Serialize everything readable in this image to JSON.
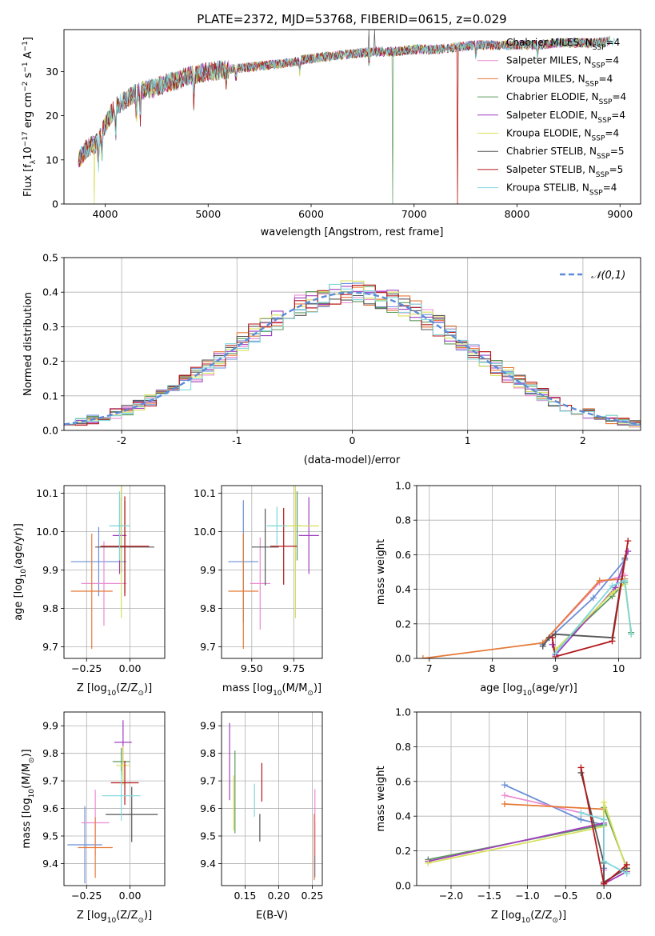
{
  "figure": {
    "title": "PLATE=2372, MJD=53768, FIBERID=0615, z=0.029"
  },
  "models": [
    {
      "name": "Chabrier MILES",
      "nssp": "4",
      "color": "#6a8fd6"
    },
    {
      "name": "Salpeter MILES",
      "nssp": "4",
      "color": "#ea8bd0"
    },
    {
      "name": "Kroupa MILES",
      "nssp": "4",
      "color": "#e57a38"
    },
    {
      "name": "Chabrier ELODIE",
      "nssp": "4",
      "color": "#5e9a5c"
    },
    {
      "name": "Salpeter ELODIE",
      "nssp": "4",
      "color": "#9f3fbf"
    },
    {
      "name": "Kroupa ELODIE",
      "nssp": "4",
      "color": "#d7e05a"
    },
    {
      "name": "Chabrier STELIB",
      "nssp": "5",
      "color": "#555555"
    },
    {
      "name": "Salpeter STELIB",
      "nssp": "5",
      "color": "#b3181b"
    },
    {
      "name": "Kroupa STELIB",
      "nssp": "4",
      "color": "#7fd8dc"
    }
  ],
  "chart_data": [
    {
      "id": "spectrum",
      "type": "line",
      "title": "PLATE=2372, MJD=53768, FIBERID=0615, z=0.029",
      "xlabel": "wavelength [Angstrom, rest frame]",
      "ylabel_parts": [
        "Flux [f",
        "λ",
        "10",
        "−17",
        " erg cm",
        "−2",
        " s",
        "−1",
        " A",
        "−1",
        "]"
      ],
      "xlim": [
        3600,
        9200
      ],
      "ylim": [
        0,
        39.5
      ],
      "xticks": [
        4000,
        5000,
        6000,
        7000,
        8000,
        9000
      ],
      "yticks": [
        0,
        10,
        20,
        30
      ],
      "continuum": {
        "x": [
          3740,
          3800,
          3850,
          3900,
          3950,
          4000,
          4050,
          4100,
          4200,
          4300,
          4400,
          4500,
          4600,
          4700,
          4800,
          4900,
          5000,
          5200,
          5400,
          5600,
          5800,
          6000,
          6200,
          6400,
          6600,
          6800,
          7000,
          7200,
          7400,
          7600,
          7800,
          8000,
          8200,
          8400,
          8600,
          8800,
          8900
        ],
        "y": [
          10,
          12,
          13,
          13.5,
          15,
          18,
          20,
          22,
          23.5,
          25,
          26,
          26.5,
          27.5,
          28,
          29,
          29.5,
          30,
          30.5,
          31,
          31.5,
          32,
          33,
          33.5,
          34,
          34.5,
          34.5,
          35,
          35,
          35.5,
          36,
          36,
          36,
          36,
          36.5,
          36.5,
          36.5,
          37
        ]
      },
      "features": [
        {
          "series": 5,
          "x": 3895,
          "y": 0
        },
        {
          "series": 3,
          "x": 6790,
          "y": 0
        },
        {
          "series": 2,
          "x": 7420,
          "y": 0
        },
        {
          "series": 7,
          "x": 7420,
          "y": 0
        },
        {
          "series": 6,
          "x": 6560,
          "y": 39.5
        },
        {
          "series": 6,
          "x": 6620,
          "y": 39.5
        }
      ],
      "legend": "upper right"
    },
    {
      "id": "residuals",
      "type": "histogram",
      "xlabel": "(data-model)/error",
      "ylabel": "Normed distribution",
      "xlim": [
        -2.5,
        2.5
      ],
      "ylim": [
        0,
        0.5
      ],
      "xticks": [
        -2,
        -1,
        0,
        1,
        2
      ],
      "yticks": [
        0.0,
        0.1,
        0.2,
        0.3,
        0.4,
        0.5
      ],
      "bin_width": 0.1,
      "normal_curve": {
        "label": "𝒩(0,1)",
        "mu": 0,
        "sigma": 1,
        "color": "#5b8bd9"
      },
      "legend": "upper right"
    },
    {
      "id": "age-vs-Z",
      "type": "errorbar",
      "xlabel_parts": [
        "Z [log",
        "10",
        "(Z/Z",
        "⊙",
        ")]"
      ],
      "ylabel_parts": [
        "age  [log",
        "10",
        "(age/yr)]"
      ],
      "xlim": [
        -0.38,
        0.2
      ],
      "ylim": [
        9.67,
        10.12
      ],
      "xticks": [
        -0.25,
        0.0
      ],
      "xtick_labels": [
        "−0.25",
        "0.00"
      ],
      "yticks": [
        9.7,
        9.8,
        9.9,
        10.0,
        10.1
      ],
      "points": [
        {
          "series": 0,
          "x": -0.18,
          "xerr": 0.16,
          "y": 9.922,
          "yerr": 0.09
        },
        {
          "series": 1,
          "x": -0.15,
          "xerr": 0.13,
          "y": 9.865,
          "yerr": 0.11
        },
        {
          "series": 2,
          "x": -0.22,
          "xerr": 0.12,
          "y": 9.845,
          "yerr": 0.15
        },
        {
          "series": 3,
          "x": -0.05,
          "xerr": 0.02,
          "y": 10.015,
          "yerr": 0.12
        },
        {
          "series": 4,
          "x": -0.06,
          "xerr": 0.04,
          "y": 9.99,
          "yerr": 0.1
        },
        {
          "series": 5,
          "x": -0.05,
          "xerr": 0.05,
          "y": 10.015,
          "yerr": 0.24
        },
        {
          "series": 6,
          "x": -0.03,
          "xerr": 0.17,
          "y": 9.96,
          "yerr": 0.12
        },
        {
          "series": 7,
          "x": -0.03,
          "xerr": 0.14,
          "y": 9.962,
          "yerr": 0.13
        },
        {
          "series": 8,
          "x": -0.06,
          "xerr": 0.06,
          "y": 10.015,
          "yerr": 0.09
        }
      ]
    },
    {
      "id": "age-vs-mass",
      "type": "errorbar",
      "xlabel_parts": [
        "mass [log",
        "10",
        "(M/M",
        "⊙",
        ")]"
      ],
      "xlim": [
        9.32,
        9.92
      ],
      "ylim": [
        9.67,
        10.12
      ],
      "xticks": [
        9.5,
        9.75
      ],
      "xtick_labels": [
        "9.50",
        "9.75"
      ],
      "yticks": [
        9.7,
        9.8,
        9.9,
        10.0,
        10.1
      ],
      "points": [
        {
          "series": 0,
          "x": 9.45,
          "xerr": 0.09,
          "y": 9.922,
          "yerr": 0.16
        },
        {
          "series": 1,
          "x": 9.55,
          "xerr": 0.06,
          "y": 9.865,
          "yerr": 0.12
        },
        {
          "series": 2,
          "x": 9.45,
          "xerr": 0.09,
          "y": 9.845,
          "yerr": 0.15
        },
        {
          "series": 3,
          "x": 9.77,
          "xerr": 0.02,
          "y": 10.015,
          "yerr": 0.09
        },
        {
          "series": 4,
          "x": 9.84,
          "xerr": 0.06,
          "y": 9.99,
          "yerr": 0.1
        },
        {
          "series": 5,
          "x": 9.76,
          "xerr": 0.14,
          "y": 10.015,
          "yerr": 0.24
        },
        {
          "series": 6,
          "x": 9.58,
          "xerr": 0.08,
          "y": 9.96,
          "yerr": 0.1
        },
        {
          "series": 7,
          "x": 9.69,
          "xerr": 0.08,
          "y": 9.962,
          "yerr": 0.1
        },
        {
          "series": 8,
          "x": 9.65,
          "xerr": 0.06,
          "y": 10.015,
          "yerr": 0.05
        }
      ]
    },
    {
      "id": "massweight-vs-age",
      "type": "line",
      "xlabel_parts": [
        "age  [log",
        "10",
        "(age/yr)]"
      ],
      "ylabel": "mass weight",
      "xlim": [
        6.8,
        10.35
      ],
      "ylim": [
        0,
        1.0
      ],
      "xticks": [
        7,
        8,
        9,
        10
      ],
      "yticks": [
        0.0,
        0.2,
        0.4,
        0.6,
        0.8,
        1.0
      ],
      "series": [
        {
          "series": 0,
          "x": [
            8.8,
            9.6,
            10.1
          ],
          "y": [
            0.08,
            0.35,
            0.57
          ]
        },
        {
          "series": 1,
          "x": [
            8.8,
            9.7,
            10.1
          ],
          "y": [
            0.09,
            0.44,
            0.48
          ]
        },
        {
          "series": 2,
          "x": [
            6.9,
            8.8,
            9.7,
            10.1
          ],
          "y": [
            0.0,
            0.09,
            0.45,
            0.46
          ]
        },
        {
          "series": 3,
          "x": [
            9.0,
            9.9,
            10.1,
            10.2
          ],
          "y": [
            0.05,
            0.36,
            0.44,
            0.15
          ]
        },
        {
          "series": 4,
          "x": [
            8.95,
            9.0,
            9.95,
            10.15
          ],
          "y": [
            0.08,
            0.02,
            0.41,
            0.62
          ]
        },
        {
          "series": 5,
          "x": [
            9.0,
            9.9,
            10.1,
            10.2
          ],
          "y": [
            0.05,
            0.38,
            0.43,
            0.14
          ]
        },
        {
          "series": 6,
          "x": [
            8.8,
            8.9,
            9.0,
            9.9,
            10.1
          ],
          "y": [
            0.07,
            0.12,
            0.14,
            0.12,
            0.58
          ]
        },
        {
          "series": 7,
          "x": [
            8.95,
            9.0,
            9.9,
            10.15
          ],
          "y": [
            0.12,
            0.01,
            0.1,
            0.68
          ]
        },
        {
          "series": 8,
          "x": [
            9.0,
            9.9,
            10.1,
            10.2
          ],
          "y": [
            0.03,
            0.42,
            0.45,
            0.14
          ]
        }
      ]
    },
    {
      "id": "mass-vs-Z",
      "type": "errorbar",
      "xlabel_parts": [
        "Z [log",
        "10",
        "(Z/Z",
        "⊙",
        ")]"
      ],
      "ylabel_parts": [
        "mass [log",
        "10",
        "(M/M",
        "⊙",
        ")]"
      ],
      "xlim": [
        -0.38,
        0.2
      ],
      "ylim": [
        9.32,
        9.95
      ],
      "xticks": [
        -0.25,
        0.0
      ],
      "xtick_labels": [
        "−0.25",
        "0.00"
      ],
      "yticks": [
        9.4,
        9.5,
        9.6,
        9.7,
        9.8,
        9.9
      ],
      "points": [
        {
          "series": 0,
          "x": -0.26,
          "xerr": 0.1,
          "y": 9.468,
          "yerr": 0.14
        },
        {
          "series": 1,
          "x": -0.2,
          "xerr": 0.08,
          "y": 9.548,
          "yerr": 0.12
        },
        {
          "series": 2,
          "x": -0.2,
          "xerr": 0.1,
          "y": 9.458,
          "yerr": 0.11
        },
        {
          "series": 3,
          "x": -0.05,
          "xerr": 0.05,
          "y": 9.77,
          "yerr": 0.05
        },
        {
          "series": 4,
          "x": -0.04,
          "xerr": 0.05,
          "y": 9.84,
          "yerr": 0.08
        },
        {
          "series": 5,
          "x": -0.04,
          "xerr": 0.04,
          "y": 9.756,
          "yerr": 0.07
        },
        {
          "series": 6,
          "x": 0.01,
          "xerr": 0.15,
          "y": 9.578,
          "yerr": 0.1
        },
        {
          "series": 7,
          "x": -0.03,
          "xerr": 0.08,
          "y": 9.693,
          "yerr": 0.08
        },
        {
          "series": 8,
          "x": -0.05,
          "xerr": 0.11,
          "y": 9.646,
          "yerr": 0.09
        }
      ]
    },
    {
      "id": "mass-vs-EBV",
      "type": "errorbar",
      "xlabel": "E(B-V)",
      "xlim": [
        0.115,
        0.265
      ],
      "ylim": [
        9.32,
        9.95
      ],
      "xticks": [
        0.15,
        0.2,
        0.25
      ],
      "xtick_labels": [
        "0.15",
        "0.20",
        "0.25"
      ],
      "yticks": [
        9.4,
        9.5,
        9.6,
        9.7,
        9.8,
        9.9
      ],
      "points": [
        {
          "series": 0,
          "x": 0.254,
          "xerr": 0,
          "y": 9.45,
          "yerr": 0.1
        },
        {
          "series": 1,
          "x": 0.254,
          "xerr": 0,
          "y": 9.55,
          "yerr": 0.12
        },
        {
          "series": 2,
          "x": 0.253,
          "xerr": 0,
          "y": 9.46,
          "yerr": 0.12
        },
        {
          "series": 3,
          "x": 0.135,
          "xerr": 0,
          "y": 9.66,
          "yerr": 0.15
        },
        {
          "series": 4,
          "x": 0.127,
          "xerr": 0,
          "y": 9.77,
          "yerr": 0.14
        },
        {
          "series": 5,
          "x": 0.133,
          "xerr": 0,
          "y": 9.62,
          "yerr": 0.1
        },
        {
          "series": 6,
          "x": 0.172,
          "xerr": 0,
          "y": 9.53,
          "yerr": 0.05
        },
        {
          "series": 7,
          "x": 0.175,
          "xerr": 0,
          "y": 9.695,
          "yerr": 0.07
        },
        {
          "series": 8,
          "x": 0.164,
          "xerr": 0,
          "y": 9.63,
          "yerr": 0.06
        }
      ]
    },
    {
      "id": "massweight-vs-Z",
      "type": "line",
      "xlabel_parts": [
        "Z [log",
        "10",
        "(Z/Z",
        "⊙",
        ")]"
      ],
      "ylabel": "mass weight",
      "xlim": [
        -2.45,
        0.48
      ],
      "ylim": [
        0,
        1.0
      ],
      "xticks": [
        -2.0,
        -1.5,
        -1.0,
        -0.5,
        0.0
      ],
      "xtick_labels": [
        "−2.0",
        "−1.5",
        "−1.0",
        "−0.5",
        "0.0"
      ],
      "yticks": [
        0.0,
        0.2,
        0.4,
        0.6,
        0.8,
        1.0
      ],
      "series": [
        {
          "series": 0,
          "x": [
            -1.3,
            -0.3,
            0.0,
            0.0
          ],
          "y": [
            0.58,
            0.38,
            0.35,
            0.1
          ]
        },
        {
          "series": 1,
          "x": [
            -1.3,
            -0.3,
            0.0,
            0.0
          ],
          "y": [
            0.52,
            0.42,
            0.38,
            0.09
          ]
        },
        {
          "series": 2,
          "x": [
            -1.3,
            0.0,
            0.0
          ],
          "y": [
            0.47,
            0.44,
            0.02
          ]
        },
        {
          "series": 3,
          "x": [
            -2.3,
            0.0,
            0.0,
            0.3
          ],
          "y": [
            0.15,
            0.35,
            0.45,
            0.1
          ]
        },
        {
          "series": 4,
          "x": [
            -2.3,
            0.0,
            0.0,
            0.3
          ],
          "y": [
            0.14,
            0.36,
            0.01,
            0.08
          ]
        },
        {
          "series": 5,
          "x": [
            -2.3,
            0.0,
            0.0,
            0.3
          ],
          "y": [
            0.13,
            0.34,
            0.48,
            0.09
          ]
        },
        {
          "series": 6,
          "x": [
            -0.3,
            0.0,
            0.0,
            0.3
          ],
          "y": [
            0.65,
            0.13,
            0.02,
            0.1
          ]
        },
        {
          "series": 7,
          "x": [
            -0.3,
            0.0,
            0.3
          ],
          "y": [
            0.68,
            0.01,
            0.12
          ]
        },
        {
          "series": 8,
          "x": [
            -0.3,
            0.0,
            0.0,
            0.3
          ],
          "y": [
            0.42,
            0.38,
            0.14,
            0.07
          ]
        }
      ]
    }
  ]
}
